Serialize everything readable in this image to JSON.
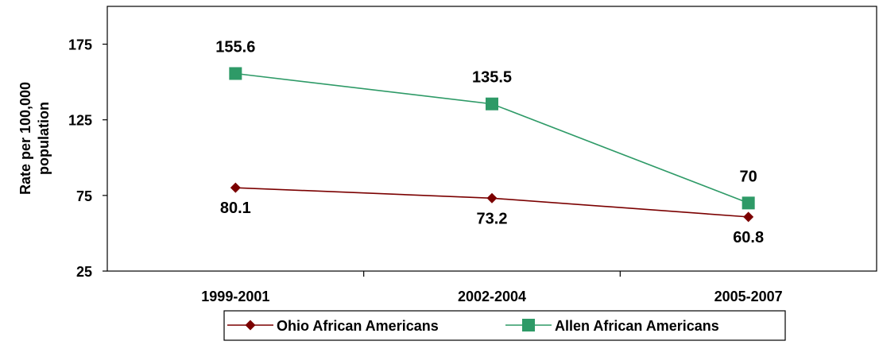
{
  "chart_data": {
    "type": "line",
    "categories": [
      "1999-2001",
      "2002-2004",
      "2005-2007"
    ],
    "ylabel_lines": [
      "Rate per 100,000",
      "population"
    ],
    "ylim": [
      25,
      200
    ],
    "yticks": [
      25,
      75,
      125,
      175
    ],
    "grid": false,
    "legend_position": "bottom",
    "series": [
      {
        "name": "Ohio African Americans",
        "values": [
          80.1,
          73.2,
          60.8
        ],
        "labels": [
          "80.1",
          "73.2",
          "60.8"
        ],
        "color": "#7b0000",
        "marker": "diamond",
        "label_position": "below"
      },
      {
        "name": "Allen African Americans",
        "values": [
          155.6,
          135.5,
          70
        ],
        "labels": [
          "155.6",
          "135.5",
          "70"
        ],
        "color": "#2e9a67",
        "marker": "square",
        "label_position": "above"
      }
    ]
  }
}
